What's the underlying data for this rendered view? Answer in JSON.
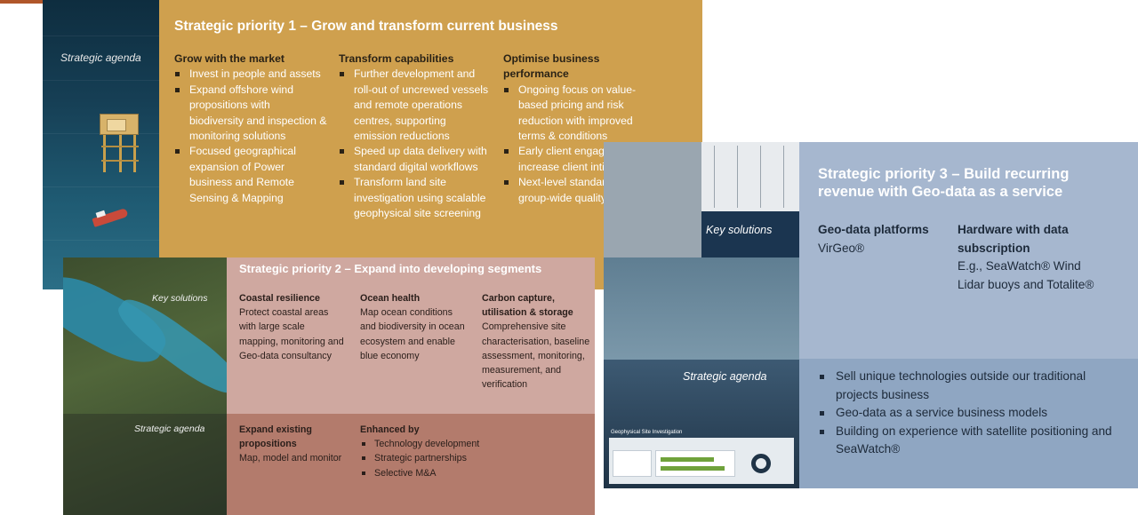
{
  "panel1": {
    "label": "Strategic agenda",
    "title": "Strategic priority 1 – Grow and transform current business",
    "col1": {
      "heading": "Grow with the market",
      "items": [
        "Invest in people and assets",
        "Expand offshore wind propositions with biodiversity and inspection & monitoring solutions",
        "Focused geographical expansion of Power business and Remote Sensing & Mapping"
      ]
    },
    "col2": {
      "heading": "Transform capabilities",
      "items": [
        "Further development and roll-out of uncrewed vessels and remote operations centres, supporting emission reductions",
        "Speed up data delivery with standard digital workflows",
        "Transform land site investigation using scalable geophysical site screening"
      ]
    },
    "col3": {
      "heading": "Optimise business performance",
      "items": [
        "Ongoing focus on value-based pricing and risk reduction with improved terms & conditions",
        "Early client engagement and increase client intimacy",
        "Next-level standardisation of group-wide quality systems"
      ]
    }
  },
  "panel2": {
    "key_label": "Key solutions",
    "agenda_label": "Strategic agenda",
    "title": "Strategic priority 2 – Expand into developing segments",
    "col1": {
      "heading": "Coastal resilience",
      "text": "Protect coastal areas with large scale mapping, monitoring and Geo-data consultancy"
    },
    "col2": {
      "heading": "Ocean health",
      "text": "Map ocean conditions and biodiversity in ocean ecosystem and enable blue economy"
    },
    "col3": {
      "heading": "Carbon capture, utilisation & storage",
      "text": "Comprehensive site characterisation, baseline assessment, monitoring, measurement, and verification"
    },
    "col4": {
      "heading": "Expand existing propositions",
      "text": "Map, model and monitor"
    },
    "col5": {
      "heading": "Enhanced by",
      "items": [
        "Technology development",
        "Strategic partnerships",
        "Selective M&A"
      ]
    }
  },
  "panel3": {
    "key_label": "Key solutions",
    "agenda_label": "Strategic agenda",
    "title": "Strategic priority 3 – Build recurring revenue with Geo-data as a service",
    "col1": {
      "heading": "Geo-data platforms",
      "text": "VirGeo®"
    },
    "col2": {
      "heading": "Hardware with data subscription",
      "text": "E.g., SeaWatch® Wind Lidar buoys and Totalite®"
    },
    "items": [
      "Sell unique technologies outside our traditional projects business",
      "Geo-data as a service business models",
      "Building on experience with satellite positioning and SeaWatch®"
    ],
    "screen_label": "Geophysical Site Investigation"
  },
  "colors": {
    "panel1_body": "#cfa04e",
    "panel2_top": "#cfa8a0",
    "panel2_bottom": "#b37b6c",
    "panel3_top": "#a6b7cf",
    "panel3_bottom": "#8fa6c2",
    "accent": "#b0562a"
  }
}
